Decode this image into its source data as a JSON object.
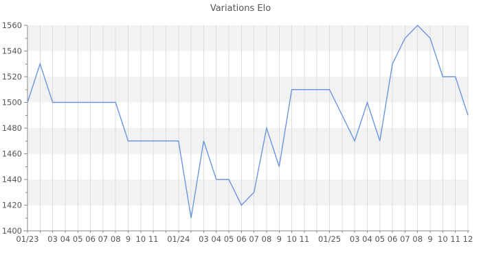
{
  "chart_data": {
    "type": "line",
    "title": "Variations Elo",
    "x_tick_labels": [
      "01/23",
      "",
      "03",
      "04",
      "05",
      "06",
      "07",
      "08",
      "9",
      "10",
      "11",
      "",
      "01/24",
      "",
      "03",
      "04",
      "05",
      "06",
      "07",
      "08",
      "9",
      "10",
      "11",
      "",
      "01/25",
      "",
      "03",
      "04",
      "05",
      "06",
      "07",
      "08",
      "9",
      "10",
      "11",
      "12"
    ],
    "values": [
      1500,
      1530,
      1500,
      1500,
      1500,
      1500,
      1500,
      1500,
      1470,
      1470,
      1470,
      1470,
      1470,
      1410,
      1470,
      1440,
      1440,
      1420,
      1430,
      1480,
      1450,
      1510,
      1510,
      1510,
      1510,
      1490,
      1470,
      1500,
      1470,
      1530,
      1550,
      1560,
      1550,
      1520,
      1520,
      1490
    ],
    "ylim": [
      1400,
      1560
    ],
    "y_label_step": 20,
    "y_minor_tick_step": 10,
    "grid": true,
    "legend_position": "none",
    "band_fill": "alternating-horizontal",
    "colors": {
      "line": "#6996e0",
      "band": "#f2f2f2",
      "grid": "#dcdcdc",
      "axis": "#888888",
      "text": "#555555"
    }
  }
}
